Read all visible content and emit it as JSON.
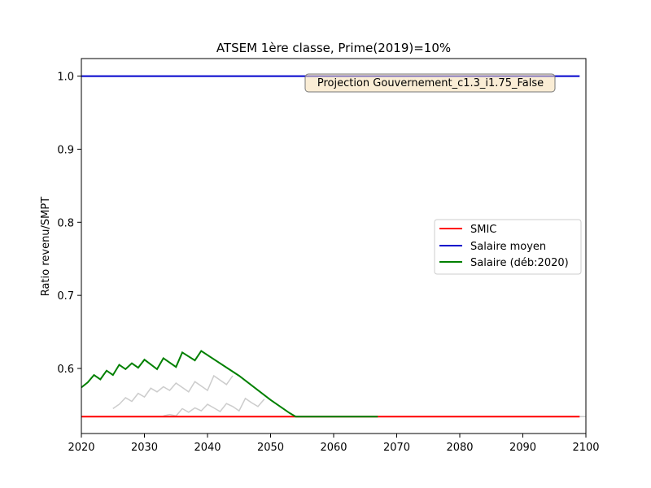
{
  "chart_data": {
    "type": "line",
    "title": "ATSEM 1ère classe, Prime(2019)=10%",
    "xlabel": "",
    "ylabel": "Ratio revenu/SMPT",
    "xlim": [
      2020,
      2100
    ],
    "ylim": [
      0.511,
      1.024
    ],
    "xticks": [
      2020,
      2030,
      2040,
      2050,
      2060,
      2070,
      2080,
      2090,
      2100
    ],
    "yticks": [
      0.6,
      0.7,
      0.8,
      0.9,
      1.0
    ],
    "ytick_labels": [
      "0.6",
      "0.7",
      "0.8",
      "0.9",
      "1.0"
    ],
    "grid": false,
    "legend_position": "center-right",
    "annotation": "Projection Gouvernement_c1.3_i1.75_False",
    "series": [
      {
        "name": "SMIC",
        "color": "#ff0000",
        "x": [
          2020,
          2099
        ],
        "y": [
          0.534,
          0.534
        ]
      },
      {
        "name": "Salaire moyen",
        "color": "#0000cc",
        "x": [
          2020,
          2099
        ],
        "y": [
          1.0,
          1.0
        ]
      },
      {
        "name": "Salaire (déb:2020)",
        "color": "#008000",
        "x": [
          2020,
          2021,
          2022,
          2023,
          2024,
          2025,
          2026,
          2027,
          2028,
          2029,
          2030,
          2032,
          2033,
          2035,
          2036,
          2038,
          2039,
          2045,
          2050,
          2053,
          2054,
          2067
        ],
        "y": [
          0.574,
          0.581,
          0.591,
          0.585,
          0.597,
          0.591,
          0.605,
          0.599,
          0.607,
          0.601,
          0.612,
          0.599,
          0.614,
          0.602,
          0.622,
          0.611,
          0.624,
          0.59,
          0.557,
          0.539,
          0.534,
          0.534
        ]
      },
      {
        "color": "#cccccc",
        "x": [
          2025,
          2026,
          2027,
          2028,
          2029,
          2030,
          2031,
          2032,
          2033,
          2034,
          2035,
          2036,
          2037,
          2038,
          2039,
          2040,
          2041,
          2042,
          2043,
          2044
        ],
        "y": [
          0.545,
          0.551,
          0.56,
          0.555,
          0.566,
          0.561,
          0.573,
          0.568,
          0.575,
          0.57,
          0.58,
          0.574,
          0.568,
          0.582,
          0.576,
          0.57,
          0.59,
          0.584,
          0.578,
          0.59
        ]
      },
      {
        "color": "#cccccc",
        "x": [
          2033,
          2034,
          2035,
          2036,
          2037,
          2038,
          2039,
          2040,
          2041,
          2042,
          2043,
          2044,
          2045,
          2046,
          2047,
          2048,
          2049
        ],
        "y": [
          0.535,
          0.537,
          0.535,
          0.545,
          0.54,
          0.546,
          0.542,
          0.551,
          0.546,
          0.541,
          0.552,
          0.548,
          0.542,
          0.559,
          0.553,
          0.548,
          0.558
        ]
      },
      {
        "color": "#cccccc",
        "x": [
          2054,
          2100
        ],
        "y": [
          0.534,
          0.534
        ]
      }
    ]
  }
}
